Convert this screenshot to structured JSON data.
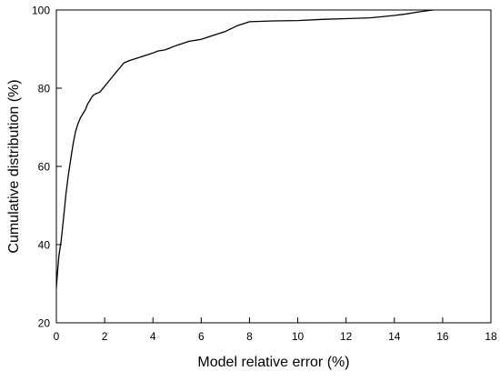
{
  "chart_data": {
    "type": "line",
    "title": "",
    "xlabel": "Model relative error (%)",
    "ylabel": "Cumulative distribution (%)",
    "xlim": [
      0,
      18
    ],
    "ylim": [
      20,
      100
    ],
    "xticks": [
      0,
      2,
      4,
      6,
      8,
      10,
      12,
      14,
      16,
      18
    ],
    "yticks": [
      20,
      40,
      60,
      80,
      100
    ],
    "grid": false,
    "legend": "none",
    "line_color": "#000000",
    "series": [
      {
        "x": [
          0.0,
          0.05,
          0.1,
          0.2,
          0.3,
          0.4,
          0.5,
          0.6,
          0.7,
          0.8,
          0.9,
          1.0,
          1.1,
          1.2,
          1.3,
          1.4,
          1.5,
          1.6,
          1.8,
          2.0,
          2.2,
          2.4,
          2.6,
          2.8,
          3.0,
          3.5,
          4.0,
          4.2,
          4.5,
          5.0,
          5.5,
          6.0,
          6.5,
          7.0,
          7.5,
          8.0,
          9.0,
          10.0,
          11.0,
          12.0,
          13.0,
          14.0,
          14.5,
          15.0,
          15.6
        ],
        "y": [
          29,
          33,
          37,
          41,
          47,
          53,
          58,
          62,
          66,
          69,
          71,
          72.5,
          73.5,
          74.5,
          76,
          77,
          78,
          78.5,
          79,
          80.5,
          82,
          83.5,
          85,
          86.5,
          87,
          88,
          89,
          89.5,
          89.8,
          91,
          92,
          92.5,
          93.5,
          94.5,
          96,
          97,
          97.2,
          97.3,
          97.6,
          97.8,
          98,
          98.6,
          99,
          99.5,
          100
        ]
      }
    ]
  }
}
